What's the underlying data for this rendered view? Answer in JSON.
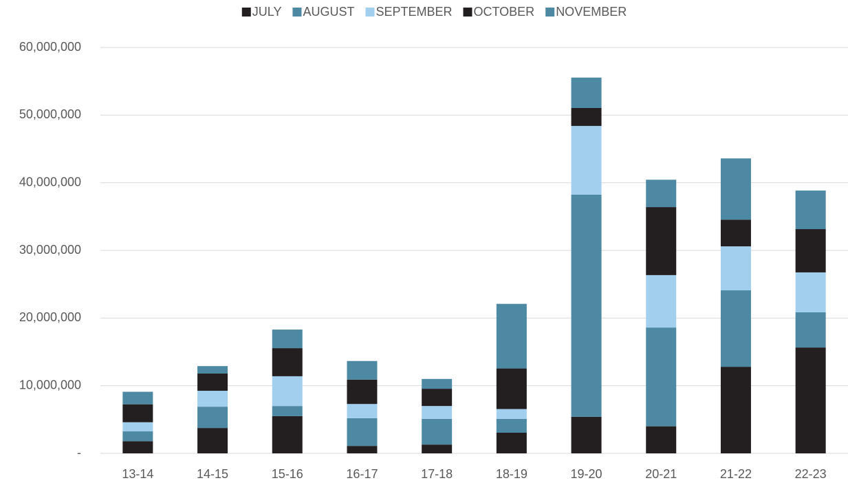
{
  "chart_data": {
    "type": "stacked_bar",
    "categories": [
      "13-14",
      "14-15",
      "15-16",
      "16-17",
      "17-18",
      "18-19",
      "19-20",
      "20-21",
      "21-22",
      "22-23"
    ],
    "series": [
      {
        "name": "JULY",
        "color": "#231f20",
        "values": [
          1800000,
          3750000,
          5500000,
          1100000,
          1300000,
          3050000,
          5400000,
          4000000,
          12800000,
          15650000
        ]
      },
      {
        "name": "AUGUST",
        "color": "#4e89a3",
        "values": [
          1450000,
          3150000,
          1500000,
          4100000,
          3800000,
          2050000,
          32850000,
          14600000,
          11300000,
          5200000
        ]
      },
      {
        "name": "SEPTEMBER",
        "color": "#a3cfee",
        "values": [
          1350000,
          2350000,
          4400000,
          2100000,
          1900000,
          1450000,
          10150000,
          7750000,
          6500000,
          5900000
        ]
      },
      {
        "name": "OCTOBER",
        "color": "#231f20",
        "values": [
          2650000,
          2550000,
          4150000,
          3600000,
          2550000,
          6000000,
          2650000,
          10050000,
          3950000,
          6400000
        ]
      },
      {
        "name": "NOVEMBER",
        "color": "#4e89a3",
        "values": [
          1850000,
          1100000,
          2750000,
          2750000,
          1450000,
          9550000,
          4500000,
          4050000,
          9050000,
          5700000
        ]
      }
    ],
    "ylim": [
      0,
      60000000
    ],
    "yticks": [
      {
        "value": 0,
        "label": "-"
      },
      {
        "value": 10000000,
        "label": "10,000,000"
      },
      {
        "value": 20000000,
        "label": "20,000,000"
      },
      {
        "value": 30000000,
        "label": "30,000,000"
      },
      {
        "value": 40000000,
        "label": "40,000,000"
      },
      {
        "value": 50000000,
        "label": "50,000,000"
      },
      {
        "value": 60000000,
        "label": "60,000,000"
      }
    ],
    "grid": true,
    "legend": "top"
  }
}
